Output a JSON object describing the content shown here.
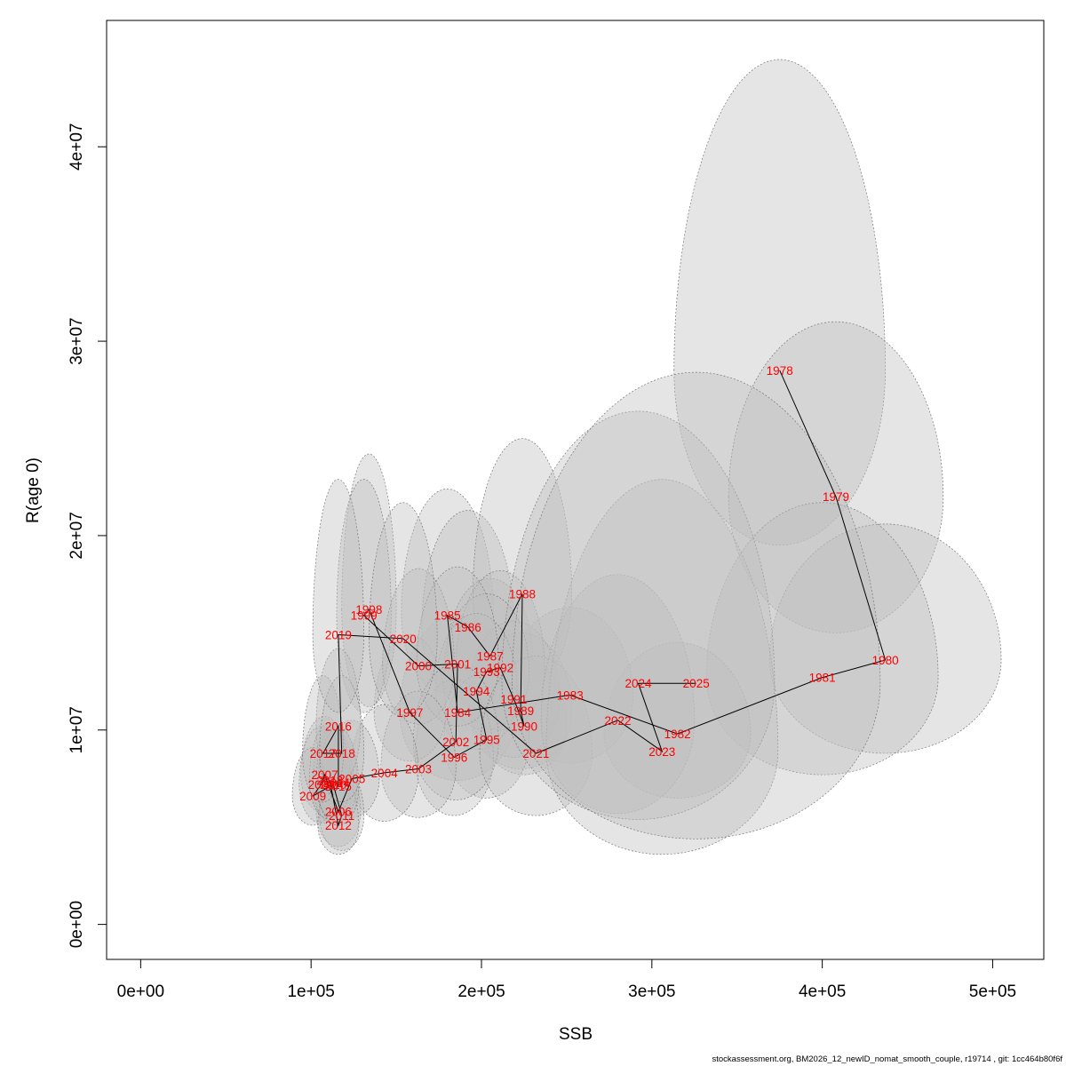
{
  "chart_data": {
    "type": "scatter",
    "xlabel": "SSB",
    "ylabel": "R(age 0)",
    "xlim": [
      -20000,
      530000
    ],
    "ylim": [
      -1800000,
      46500000
    ],
    "x_ticks": [
      0,
      100000,
      200000,
      300000,
      400000,
      500000
    ],
    "x_tick_labels": [
      "0e+00",
      "1e+05",
      "2e+05",
      "3e+05",
      "4e+05",
      "5e+05"
    ],
    "y_ticks": [
      0,
      10000000,
      20000000,
      30000000,
      40000000
    ],
    "y_tick_labels": [
      "0e+00",
      "1e+07",
      "2e+07",
      "3e+07",
      "4e+07"
    ],
    "label_color": "#ff0000",
    "line_color": "#000000",
    "ellipse_fill": "#bebebe",
    "points": [
      {
        "year": "1978",
        "ssb": 375000,
        "r": 28500000,
        "sx": 62000,
        "sy_up": 16000000,
        "sy_down": 9000000
      },
      {
        "year": "1979",
        "ssb": 408000,
        "r": 22000000,
        "sx": 63000,
        "sy_up": 9000000,
        "sy_down": 7000000
      },
      {
        "year": "1980",
        "ssb": 437000,
        "r": 13600000,
        "sx": 68000,
        "sy_up": 7000000,
        "sy_down": 4800000
      },
      {
        "year": "1981",
        "ssb": 400000,
        "r": 12700000,
        "sx": 68000,
        "sy_up": 9000000,
        "sy_down": 5000000
      },
      {
        "year": "1982",
        "ssb": 315000,
        "r": 9800000,
        "sx": 43000,
        "sy_up": 4700000,
        "sy_down": 3300000
      },
      {
        "year": "1983",
        "ssb": 252000,
        "r": 11800000,
        "sx": 37000,
        "sy_up": 4500000,
        "sy_down": 3500000
      },
      {
        "year": "1984",
        "ssb": 186000,
        "r": 10900000,
        "sx": 34000,
        "sy_up": 5000000,
        "sy_down": 3500000
      },
      {
        "year": "1985",
        "ssb": 180000,
        "r": 15900000,
        "sx": 27000,
        "sy_up": 6500000,
        "sy_down": 4000000
      },
      {
        "year": "1986",
        "ssb": 192000,
        "r": 15300000,
        "sx": 27000,
        "sy_up": 6000000,
        "sy_down": 4000000
      },
      {
        "year": "1987",
        "ssb": 205000,
        "r": 13800000,
        "sx": 25000,
        "sy_up": 4000000,
        "sy_down": 3000000
      },
      {
        "year": "1988",
        "ssb": 224000,
        "r": 17000000,
        "sx": 29000,
        "sy_up": 8000000,
        "sy_down": 5000000
      },
      {
        "year": "1989",
        "ssb": 223000,
        "r": 11000000,
        "sx": 30000,
        "sy_up": 4000000,
        "sy_down": 3000000
      },
      {
        "year": "1990",
        "ssb": 225000,
        "r": 10200000,
        "sx": 25000,
        "sy_up": 3500000,
        "sy_down": 2500000
      },
      {
        "year": "1991",
        "ssb": 219000,
        "r": 11600000,
        "sx": 27000,
        "sy_up": 4000000,
        "sy_down": 3000000
      },
      {
        "year": "1992",
        "ssb": 211000,
        "r": 13200000,
        "sx": 26000,
        "sy_up": 5000000,
        "sy_down": 3200000
      },
      {
        "year": "1993",
        "ssb": 203000,
        "r": 13000000,
        "sx": 25000,
        "sy_up": 4000000,
        "sy_down": 3000000
      },
      {
        "year": "1994",
        "ssb": 197000,
        "r": 12000000,
        "sx": 24000,
        "sy_up": 4000000,
        "sy_down": 3000000
      },
      {
        "year": "1995",
        "ssb": 203000,
        "r": 9500000,
        "sx": 25000,
        "sy_up": 3500000,
        "sy_down": 3000000
      },
      {
        "year": "1996",
        "ssb": 184000,
        "r": 8600000,
        "sx": 23000,
        "sy_up": 4000000,
        "sy_down": 3000000
      },
      {
        "year": "1997",
        "ssb": 158000,
        "r": 10900000,
        "sx": 21000,
        "sy_up": 4000000,
        "sy_down": 2500000
      },
      {
        "year": "1998",
        "ssb": 134000,
        "r": 16200000,
        "sx": 16000,
        "sy_up": 8000000,
        "sy_down": 5000000
      },
      {
        "year": "1999",
        "ssb": 131000,
        "r": 15900000,
        "sx": 16000,
        "sy_up": 7000000,
        "sy_down": 5000000
      },
      {
        "year": "2000",
        "ssb": 163000,
        "r": 13300000,
        "sx": 21000,
        "sy_up": 5000000,
        "sy_down": 3000000
      },
      {
        "year": "2001",
        "ssb": 186000,
        "r": 13400000,
        "sx": 24000,
        "sy_up": 5000000,
        "sy_down": 3200000
      },
      {
        "year": "2002",
        "ssb": 185000,
        "r": 9400000,
        "sx": 25000,
        "sy_up": 4000000,
        "sy_down": 3000000
      },
      {
        "year": "2003",
        "ssb": 163000,
        "r": 8000000,
        "sx": 22000,
        "sy_up": 4000000,
        "sy_down": 2500000
      },
      {
        "year": "2004",
        "ssb": 143000,
        "r": 7800000,
        "sx": 20000,
        "sy_up": 3500000,
        "sy_down": 2500000
      },
      {
        "year": "2005",
        "ssb": 124000,
        "r": 7500000,
        "sx": 16000,
        "sy_up": 3000000,
        "sy_down": 2000000
      },
      {
        "year": "2006",
        "ssb": 116000,
        "r": 5800000,
        "sx": 13000,
        "sy_up": 2500000,
        "sy_down": 1800000
      },
      {
        "year": "2007",
        "ssb": 108000,
        "r": 7700000,
        "sx": 14000,
        "sy_up": 3000000,
        "sy_down": 2000000
      },
      {
        "year": "2008",
        "ssb": 106000,
        "r": 7200000,
        "sx": 13000,
        "sy_up": 3000000,
        "sy_down": 2000000
      },
      {
        "year": "2009",
        "ssb": 101000,
        "r": 6600000,
        "sx": 12000,
        "sy_up": 2500000,
        "sy_down": 1500000
      },
      {
        "year": "2010",
        "ssb": 113000,
        "r": 7200000,
        "sx": 12000,
        "sy_up": 3000000,
        "sy_down": 2000000
      },
      {
        "year": "2011",
        "ssb": 118000,
        "r": 5600000,
        "sx": 13000,
        "sy_up": 2500000,
        "sy_down": 1800000
      },
      {
        "year": "2012",
        "ssb": 116000,
        "r": 5100000,
        "sx": 12000,
        "sy_up": 2500000,
        "sy_down": 1500000
      },
      {
        "year": "2013",
        "ssb": 111000,
        "r": 7400000,
        "sx": 12000,
        "sy_up": 3000000,
        "sy_down": 2000000
      },
      {
        "year": "2014",
        "ssb": 115000,
        "r": 7300000,
        "sx": 12000,
        "sy_up": 3000000,
        "sy_down": 2000000
      },
      {
        "year": "2015",
        "ssb": 116000,
        "r": 7100000,
        "sx": 12000,
        "sy_up": 3000000,
        "sy_down": 2000000
      },
      {
        "year": "2016",
        "ssb": 116000,
        "r": 10200000,
        "sx": 13000,
        "sy_up": 4000000,
        "sy_down": 3000000
      },
      {
        "year": "2017",
        "ssb": 107000,
        "r": 8800000,
        "sx": 12000,
        "sy_up": 4000000,
        "sy_down": 2500000
      },
      {
        "year": "2018",
        "ssb": 118000,
        "r": 8800000,
        "sx": 13000,
        "sy_up": 4000000,
        "sy_down": 2500000
      },
      {
        "year": "2019",
        "ssb": 116000,
        "r": 14900000,
        "sx": 15000,
        "sy_up": 8000000,
        "sy_down": 4000000
      },
      {
        "year": "2020",
        "ssb": 154000,
        "r": 14700000,
        "sx": 20000,
        "sy_up": 7000000,
        "sy_down": 4000000
      },
      {
        "year": "2021",
        "ssb": 232000,
        "r": 8800000,
        "sx": 33000,
        "sy_up": 5000000,
        "sy_down": 3200000
      },
      {
        "year": "2022",
        "ssb": 280000,
        "r": 10500000,
        "sx": 45000,
        "sy_up": 7500000,
        "sy_down": 4800000
      },
      {
        "year": "2023",
        "ssb": 306000,
        "r": 8900000,
        "sx": 68000,
        "sy_up": 14000000,
        "sy_down": 5300000
      },
      {
        "year": "2024",
        "ssb": 292000,
        "r": 12400000,
        "sx": 80000,
        "sy_up": 14000000,
        "sy_down": 7000000
      },
      {
        "year": "2025",
        "ssb": 326000,
        "r": 12400000,
        "sx": 108000,
        "sy_up": 16000000,
        "sy_down": 8000000
      }
    ]
  },
  "footer": {
    "text": "stockassessment.org, BM2026_12_newID_nomat_smooth_couple, r19714 , git: 1cc464b80f6f"
  }
}
